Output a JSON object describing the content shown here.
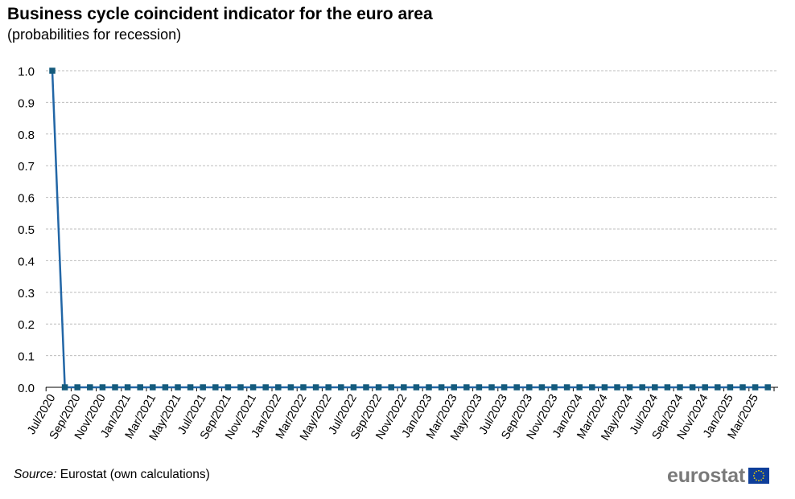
{
  "title": "Business cycle coincident indicator for the euro area",
  "subtitle": "(probabilities for recession)",
  "source": {
    "label": "Source:",
    "text": " Eurostat (own calculations)"
  },
  "logo": {
    "text": "eurostat",
    "flag_icon": "eu-flag-icon",
    "flag_color": "#0e3e9a",
    "star_color": "#f5d400"
  },
  "colors": {
    "series": "#2266a6",
    "marker": "#145a7c",
    "grid": "#bdbdbd",
    "axis": "#000000"
  },
  "chart_data": {
    "type": "line",
    "title": "Business cycle coincident indicator for the euro area",
    "subtitle": "(probabilities for recession)",
    "xlabel": "",
    "ylabel": "",
    "ylim": [
      0,
      1.0
    ],
    "yticks": [
      "0.0",
      "0.1",
      "0.2",
      "0.3",
      "0.4",
      "0.5",
      "0.6",
      "0.7",
      "0.8",
      "0.9",
      "1.0"
    ],
    "grid": true,
    "legend": "none",
    "x": [
      "Jul/2020",
      "Aug/2020",
      "Sep/2020",
      "Oct/2020",
      "Nov/2020",
      "Dec/2020",
      "Jan/2021",
      "Feb/2021",
      "Mar/2021",
      "Apr/2021",
      "May/2021",
      "Jun/2021",
      "Jul/2021",
      "Aug/2021",
      "Sep/2021",
      "Oct/2021",
      "Nov/2021",
      "Dec/2021",
      "Jan/2022",
      "Feb/2022",
      "Mar/2022",
      "Apr/2022",
      "May/2022",
      "Jun/2022",
      "Jul/2022",
      "Aug/2022",
      "Sep/2022",
      "Oct/2022",
      "Nov/2022",
      "Dec/2022",
      "Jan/2023",
      "Feb/2023",
      "Mar/2023",
      "Apr/2023",
      "May/2023",
      "Jun/2023",
      "Jul/2023",
      "Aug/2023",
      "Sep/2023",
      "Oct/2023",
      "Nov/2023",
      "Dec/2023",
      "Jan/2024",
      "Feb/2024",
      "Mar/2024",
      "Apr/2024",
      "May/2024",
      "Jun/2024",
      "Jul/2024",
      "Aug/2024",
      "Sep/2024",
      "Oct/2024",
      "Nov/2024",
      "Dec/2024",
      "Jan/2025",
      "Feb/2025",
      "Mar/2025",
      "Apr/2025"
    ],
    "xticklabels": [
      "Jul/2020",
      "Sep/2020",
      "Nov/2020",
      "Jan/2021",
      "Mar/2021",
      "May/2021",
      "Jul/2021",
      "Sep/2021",
      "Nov/2021",
      "Jan/2022",
      "Mar/2022",
      "May/2022",
      "Jul/2022",
      "Sep/2022",
      "Nov/2022",
      "Jan/2023",
      "Mar/2023",
      "May/2023",
      "Jul/2023",
      "Sep/2023",
      "Nov/2023",
      "Jan/2024",
      "Mar/2024",
      "May/2024",
      "Jul/2024",
      "Sep/2024",
      "Nov/2024",
      "Jan/2025",
      "Mar/2025"
    ],
    "series": [
      {
        "values": [
          1.0,
          0.0,
          0.0,
          0.0,
          0.0,
          0.0,
          0.0,
          0.0,
          0.0,
          0.0,
          0.0,
          0.0,
          0.0,
          0.0,
          0.0,
          0.0,
          0.0,
          0.0,
          0.0,
          0.0,
          0.0,
          0.0,
          0.0,
          0.0,
          0.0,
          0.0,
          0.0,
          0.0,
          0.0,
          0.0,
          0.0,
          0.0,
          0.0,
          0.0,
          0.0,
          0.0,
          0.0,
          0.0,
          0.0,
          0.0,
          0.0,
          0.0,
          0.0,
          0.0,
          0.0,
          0.0,
          0.0,
          0.0,
          0.0,
          0.0,
          0.0,
          0.0,
          0.0,
          0.0,
          0.0,
          0.0,
          0.0,
          0.0
        ]
      }
    ]
  }
}
